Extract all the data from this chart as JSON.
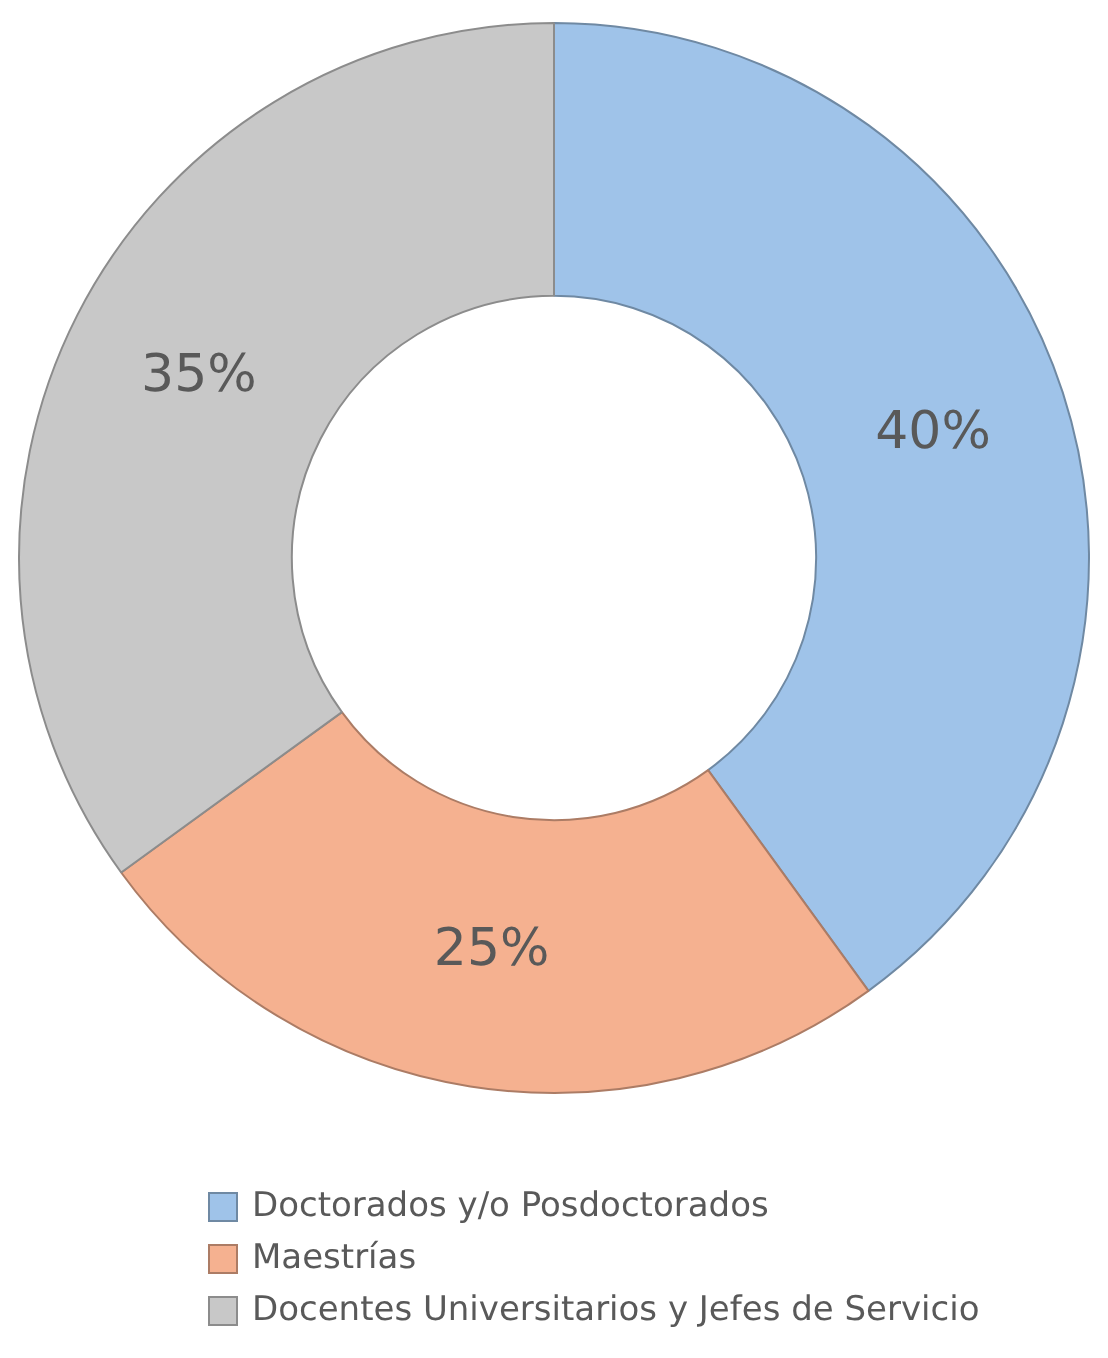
{
  "chart_data": {
    "type": "donut",
    "categories": [
      "Doctorados y/o Posdoctorados",
      "Maestrías",
      "Docentes Universitarios y Jefes de Servicio"
    ],
    "values": [
      40,
      25,
      35
    ],
    "colors": [
      "#9fc3e9",
      "#f5b190",
      "#c8c8c8"
    ],
    "value_labels": [
      "40%",
      "25%",
      "35%"
    ],
    "legend": "bottom"
  }
}
